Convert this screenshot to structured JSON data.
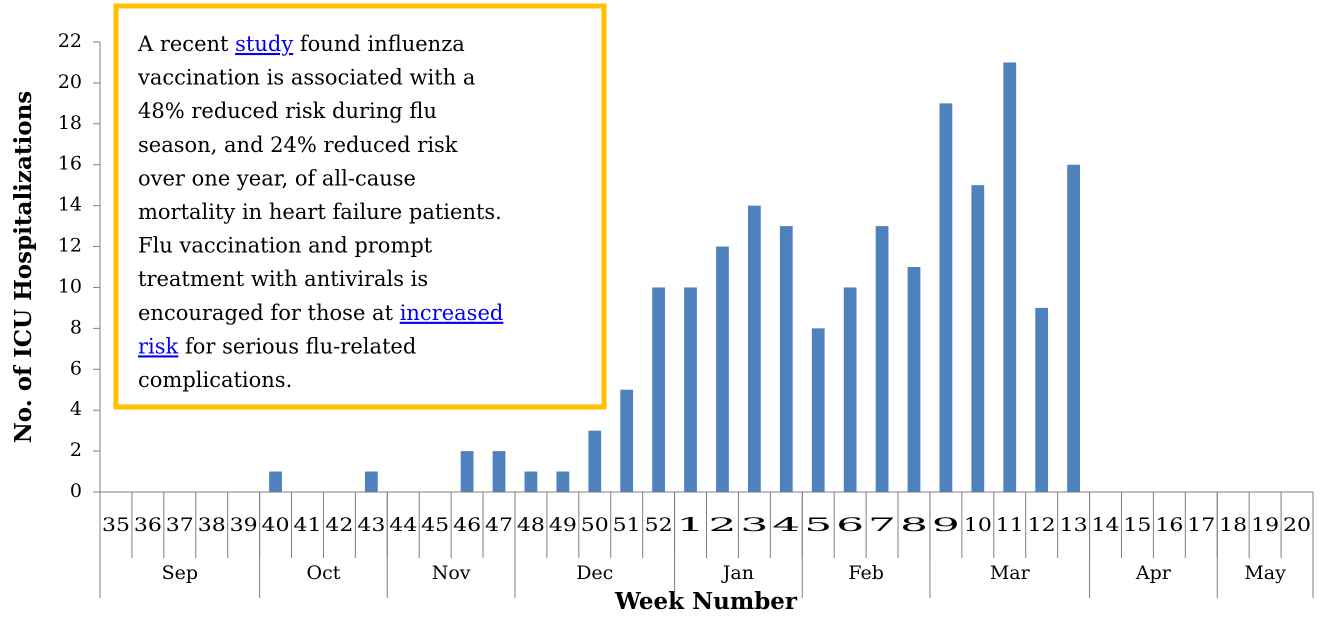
{
  "chart_data": {
    "type": "bar",
    "y_axis_label": "No. of ICU Hospitalizations",
    "x_axis_label": "Week Number",
    "categories": [
      "35",
      "36",
      "37",
      "38",
      "39",
      "40",
      "41",
      "42",
      "43",
      "44",
      "45",
      "46",
      "47",
      "48",
      "49",
      "50",
      "51",
      "52",
      "1",
      "2",
      "3",
      "4",
      "5",
      "6",
      "7",
      "8",
      "9",
      "10",
      "11",
      "12",
      "13",
      "14",
      "15",
      "16",
      "17",
      "18",
      "19",
      "20"
    ],
    "values": [
      0,
      0,
      0,
      0,
      0,
      1,
      0,
      0,
      1,
      0,
      0,
      2,
      2,
      1,
      1,
      3,
      5,
      10,
      10,
      12,
      14,
      13,
      8,
      10,
      13,
      11,
      19,
      15,
      21,
      9,
      16,
      null,
      null,
      null,
      null,
      null,
      null,
      null
    ],
    "color": "#4f81bd",
    "month_groups": [
      {
        "label": "Sep",
        "span": 5
      },
      {
        "label": "Oct",
        "span": 4
      },
      {
        "label": "Nov",
        "span": 4
      },
      {
        "label": "Dec",
        "span": 5
      },
      {
        "label": "Jan",
        "span": 4
      },
      {
        "label": "Feb",
        "span": 4
      },
      {
        "label": "Mar",
        "span": 5
      },
      {
        "label": "Apr",
        "span": 4
      },
      {
        "label": "May",
        "span": 3
      }
    ],
    "ylim": [
      0,
      22
    ],
    "yticks": [
      0,
      2,
      4,
      6,
      8,
      10,
      12,
      14,
      16,
      18,
      20,
      22
    ],
    "annotation": {
      "lines": [
        [
          {
            "text": "A recent "
          },
          {
            "text": "study",
            "link": true
          },
          {
            "text": " found influenza"
          }
        ],
        [
          {
            "text": "vaccination is associated with a"
          }
        ],
        [
          {
            "text": "48% reduced risk during flu"
          }
        ],
        [
          {
            "text": "season, and 24% reduced risk"
          }
        ],
        [
          {
            "text": "over one year, of all-cause"
          }
        ],
        [
          {
            "text": "mortality in heart failure patients."
          }
        ],
        [
          {
            "text": "Flu vaccination and prompt"
          }
        ],
        [
          {
            "text": "treatment with antivirals is"
          }
        ],
        [
          {
            "text": "encouraged for those at "
          },
          {
            "text": "increased",
            "link": true
          }
        ],
        [
          {
            "text": "risk",
            "link": true
          },
          {
            "text": " for serious flu-related"
          }
        ],
        [
          {
            "text": "complications."
          }
        ]
      ]
    }
  }
}
